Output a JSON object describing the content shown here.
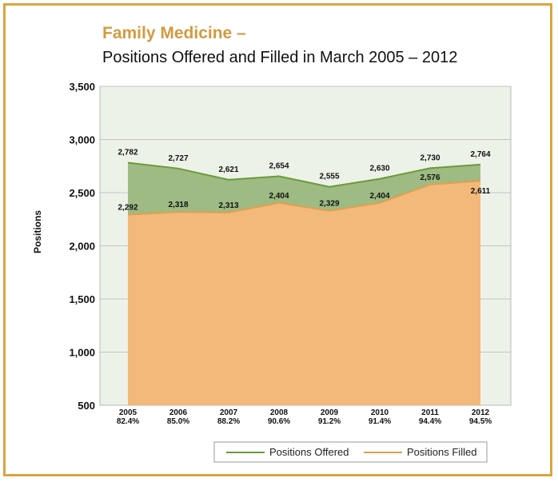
{
  "header": {
    "title": "Family Medicine –",
    "subtitle": "Positions Offered and Filled in March 2005 – 2012"
  },
  "chart_data": {
    "type": "area",
    "categories": [
      "2005",
      "2006",
      "2007",
      "2008",
      "2009",
      "2010",
      "2011",
      "2012"
    ],
    "fill_rates": [
      "82.4%",
      "85.0%",
      "88.2%",
      "90.6%",
      "91.2%",
      "91.4%",
      "94.4%",
      "94.5%"
    ],
    "series": [
      {
        "name": "Positions Offered",
        "values": [
          2782,
          2727,
          2621,
          2654,
          2555,
          2630,
          2730,
          2764
        ],
        "labels": [
          "2,782",
          "2,727",
          "2,621",
          "2,654",
          "2,555",
          "2,630",
          "2,730",
          "2,764"
        ],
        "color": "#6b9a3a",
        "fill": "#9dbb82"
      },
      {
        "name": "Positions Filled",
        "values": [
          2292,
          2318,
          2313,
          2404,
          2329,
          2404,
          2576,
          2611
        ],
        "labels": [
          "2,292",
          "2,318",
          "2,313",
          "2,404",
          "2,329",
          "2,404",
          "2,576",
          "2,611"
        ],
        "color": "#e0a050",
        "fill": "#f2b97a"
      }
    ],
    "ylabel": "Positions",
    "ylim": [
      500,
      3500
    ],
    "yticks": [
      500,
      1000,
      1500,
      2000,
      2500,
      3000,
      3500
    ],
    "ytick_labels": [
      "500",
      "1,000",
      "1,500",
      "2,000",
      "2,500",
      "3,000",
      "3,500"
    ],
    "grid": true,
    "plot_background": "#edf2e8",
    "legend_position": "bottom"
  }
}
